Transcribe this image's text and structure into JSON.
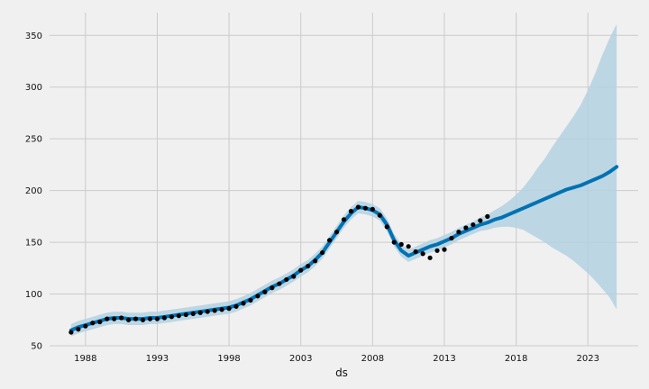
{
  "chart_data": {
    "type": "line",
    "title": "",
    "xlabel": "ds",
    "ylabel": "",
    "xlim": [
      1985.5,
      2026.5
    ],
    "ylim": [
      50,
      372
    ],
    "grid": true,
    "legend": "none",
    "x_ticks": [
      {
        "value": 1988,
        "label": "1988"
      },
      {
        "value": 1993,
        "label": "1993"
      },
      {
        "value": 1998,
        "label": "1998"
      },
      {
        "value": 2003,
        "label": "2003"
      },
      {
        "value": 2008,
        "label": "2008"
      },
      {
        "value": 2013,
        "label": "2013"
      },
      {
        "value": 2018,
        "label": "2018"
      },
      {
        "value": 2023,
        "label": "2023"
      }
    ],
    "y_ticks": [
      {
        "value": 50,
        "label": "50"
      },
      {
        "value": 100,
        "label": "100"
      },
      {
        "value": 150,
        "label": "150"
      },
      {
        "value": 200,
        "label": "200"
      },
      {
        "value": 250,
        "label": "250"
      },
      {
        "value": 300,
        "label": "300"
      },
      {
        "value": 350,
        "label": "350"
      }
    ],
    "colors": {
      "background": "#f0f0f0",
      "grid": "#cbcbcb",
      "forecast": "#0072B2",
      "interval": "#b4d1e2",
      "observed": "#000000"
    },
    "series": [
      {
        "kind": "observed",
        "x": [
          1987.0,
          1987.5,
          1988.0,
          1988.5,
          1989.0,
          1989.5,
          1990.0,
          1990.5,
          1991.0,
          1991.5,
          1992.0,
          1992.5,
          1993.0,
          1993.5,
          1994.0,
          1994.5,
          1995.0,
          1995.5,
          1996.0,
          1996.5,
          1997.0,
          1997.5,
          1998.0,
          1998.5,
          1999.0,
          1999.5,
          2000.0,
          2000.5,
          2001.0,
          2001.5,
          2002.0,
          2002.5,
          2003.0,
          2003.5,
          2004.0,
          2004.5,
          2005.0,
          2005.5,
          2006.0,
          2006.5,
          2007.0,
          2007.5,
          2008.0,
          2008.5,
          2009.0,
          2009.5,
          2010.0,
          2010.5,
          2011.0,
          2011.5,
          2012.0,
          2012.5,
          2013.0,
          2013.5,
          2014.0,
          2014.5,
          2015.0,
          2015.5,
          2016.0
        ],
        "values": [
          63,
          66,
          69,
          72,
          73,
          76,
          76,
          77,
          75,
          76,
          75,
          76,
          76,
          77,
          78,
          79,
          80,
          81,
          82,
          83,
          84,
          85,
          86,
          88,
          91,
          94,
          98,
          102,
          106,
          110,
          114,
          117,
          123,
          127,
          132,
          140,
          152,
          160,
          172,
          180,
          184,
          183,
          182,
          176,
          165,
          150,
          148,
          146,
          141,
          139,
          135,
          142,
          143,
          154,
          160,
          164,
          167,
          171,
          175
        ]
      },
      {
        "kind": "forecast",
        "x": [
          1987.0,
          1987.5,
          1988.0,
          1988.5,
          1989.0,
          1989.5,
          1990.0,
          1990.5,
          1991.0,
          1991.5,
          1992.0,
          1992.5,
          1993.0,
          1993.5,
          1994.0,
          1994.5,
          1995.0,
          1995.5,
          1996.0,
          1996.5,
          1997.0,
          1997.5,
          1998.0,
          1998.5,
          1999.0,
          1999.5,
          2000.0,
          2000.5,
          2001.0,
          2001.5,
          2002.0,
          2002.5,
          2003.0,
          2003.5,
          2004.0,
          2004.5,
          2005.0,
          2005.5,
          2006.0,
          2006.5,
          2007.0,
          2007.5,
          2008.0,
          2008.5,
          2009.0,
          2009.5,
          2010.0,
          2010.5,
          2011.0,
          2011.5,
          2012.0,
          2012.5,
          2013.0,
          2013.5,
          2014.0,
          2014.5,
          2015.0,
          2015.5,
          2016.0,
          2016.5,
          2017.0,
          2017.5,
          2018.0,
          2018.5,
          2019.0,
          2019.5,
          2020.0,
          2020.5,
          2021.0,
          2021.5,
          2022.0,
          2022.5,
          2023.0,
          2023.5,
          2024.0,
          2024.5,
          2025.0
        ],
        "values": [
          65,
          68,
          70,
          72,
          74,
          76,
          77,
          77,
          76,
          76,
          76,
          77,
          77,
          78,
          79,
          80,
          81,
          82,
          83,
          84,
          85,
          86,
          87,
          89,
          92,
          95,
          99,
          103,
          107,
          110,
          114,
          118,
          123,
          127,
          133,
          140,
          150,
          160,
          170,
          178,
          184,
          183,
          181,
          177,
          167,
          152,
          142,
          137,
          140,
          143,
          146,
          148,
          151,
          154,
          158,
          161,
          164,
          167,
          169,
          172,
          174,
          177,
          180,
          183,
          186,
          189,
          192,
          195,
          198,
          201,
          203,
          205,
          208,
          211,
          214,
          218,
          223
        ],
        "lower": [
          59,
          62,
          64,
          66,
          68,
          70,
          71,
          71,
          70,
          70,
          70,
          71,
          71,
          72,
          73,
          74,
          75,
          76,
          77,
          78,
          79,
          80,
          81,
          83,
          86,
          89,
          93,
          97,
          101,
          104,
          108,
          112,
          117,
          121,
          127,
          134,
          144,
          154,
          164,
          172,
          178,
          177,
          175,
          171,
          161,
          146,
          136,
          131,
          134,
          137,
          140,
          142,
          145,
          148,
          152,
          155,
          158,
          161,
          162,
          164,
          165,
          165,
          164,
          162,
          158,
          154,
          150,
          145,
          141,
          137,
          132,
          126,
          120,
          113,
          105,
          97,
          85
        ],
        "upper": [
          71,
          74,
          76,
          78,
          80,
          82,
          83,
          83,
          82,
          82,
          82,
          83,
          83,
          84,
          85,
          86,
          87,
          88,
          89,
          90,
          91,
          92,
          93,
          95,
          98,
          101,
          105,
          109,
          113,
          116,
          120,
          124,
          129,
          133,
          139,
          146,
          156,
          166,
          176,
          184,
          190,
          189,
          187,
          183,
          173,
          158,
          148,
          143,
          146,
          149,
          152,
          154,
          157,
          160,
          164,
          167,
          170,
          174,
          177,
          181,
          185,
          190,
          196,
          203,
          212,
          222,
          231,
          242,
          252,
          262,
          272,
          283,
          297,
          313,
          331,
          347,
          361
        ]
      }
    ]
  }
}
